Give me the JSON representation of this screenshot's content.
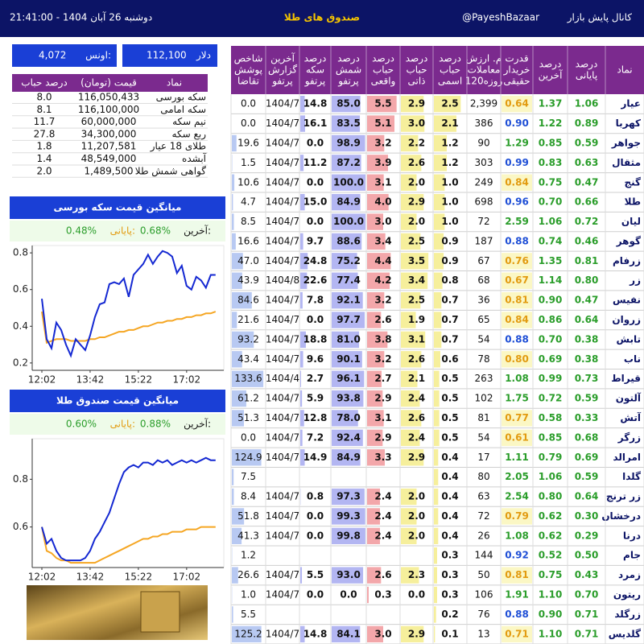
{
  "header": {
    "date": "دوشنبه 26 آبان 1404 - 21:41:00",
    "title": "صندوق های طلا",
    "channel": "کانال پایش بازار",
    "handle": "@PayeshBazaar"
  },
  "prices": {
    "dollar": {
      "label": "دلار",
      "value": "112,100"
    },
    "ounce": {
      "label": "اونس:",
      "value": "4,072"
    }
  },
  "coins": {
    "headers": [
      "نماد",
      "قیمت (تومان)",
      "درصد حباب"
    ],
    "rows": [
      [
        "سکه بورسی",
        "116,050,433",
        "8.0"
      ],
      [
        "سکه امامی",
        "116,100,000",
        "8.1"
      ],
      [
        "نیم سکه",
        "60,000,000",
        "11.7"
      ],
      [
        "ربع سکه",
        "34,300,000",
        "27.8"
      ],
      [
        "طلای 18 عیار",
        "11,207,581",
        "1.8"
      ],
      [
        "آبشده",
        "48,549,000",
        "1.4"
      ],
      [
        "گواهی شمش طلا",
        "1,489,500",
        "2.0"
      ]
    ]
  },
  "charts": [
    {
      "type": "line",
      "title": "میانگین قیمت سکه بورسی",
      "last_label": "آخرین:",
      "last": "0.68%",
      "close_label": "پایانی:",
      "close": "0.48%",
      "x": [
        722,
        732,
        742,
        752,
        762,
        772,
        782,
        792,
        802,
        812,
        822,
        832,
        842,
        852,
        862,
        872,
        882,
        892,
        902,
        912,
        922,
        932,
        942,
        952,
        962,
        972,
        982,
        992,
        1002,
        1012,
        1022,
        1032,
        1042,
        1052,
        1062,
        1072,
        1082
      ],
      "series": [
        {
          "color": "#1428d2",
          "values": [
            0.55,
            0.33,
            0.28,
            0.42,
            0.38,
            0.3,
            0.24,
            0.33,
            0.3,
            0.27,
            0.35,
            0.45,
            0.52,
            0.53,
            0.63,
            0.64,
            0.63,
            0.66,
            0.56,
            0.68,
            0.71,
            0.74,
            0.79,
            0.74,
            0.78,
            0.81,
            0.8,
            0.78,
            0.69,
            0.73,
            0.62,
            0.6,
            0.67,
            0.65,
            0.61,
            0.68,
            0.68
          ]
        },
        {
          "color": "#f5a623",
          "values": [
            0.48,
            0.31,
            0.32,
            0.33,
            0.33,
            0.33,
            0.32,
            0.32,
            0.32,
            0.32,
            0.33,
            0.33,
            0.34,
            0.34,
            0.35,
            0.36,
            0.37,
            0.37,
            0.38,
            0.38,
            0.39,
            0.4,
            0.4,
            0.41,
            0.42,
            0.42,
            0.43,
            0.43,
            0.44,
            0.44,
            0.45,
            0.45,
            0.46,
            0.46,
            0.47,
            0.47,
            0.48
          ]
        }
      ],
      "xlim": [
        702,
        1099
      ],
      "xticks": [
        {
          "value": 722,
          "label": "12:02"
        },
        {
          "value": 822,
          "label": "13:42"
        },
        {
          "value": 922,
          "label": "15:22"
        },
        {
          "value": 1022,
          "label": "17:02"
        }
      ],
      "ylim": [
        0.16,
        0.84
      ],
      "yticks": [
        0.2,
        0.4,
        0.6,
        0.8
      ]
    },
    {
      "type": "line",
      "title": "میانگین قیمت صندوق طلا",
      "last_label": "آخرین:",
      "last": "0.88%",
      "close_label": "پایانی:",
      "close": "0.60%",
      "x": [
        722,
        732,
        742,
        752,
        762,
        772,
        782,
        792,
        802,
        812,
        822,
        832,
        842,
        852,
        862,
        872,
        882,
        892,
        902,
        912,
        922,
        932,
        942,
        952,
        962,
        972,
        982,
        992,
        1002,
        1012,
        1022,
        1032,
        1042,
        1052,
        1062,
        1072,
        1082
      ],
      "series": [
        {
          "color": "#1428d2",
          "values": [
            0.6,
            0.53,
            0.55,
            0.5,
            0.47,
            0.46,
            0.46,
            0.46,
            0.46,
            0.47,
            0.5,
            0.55,
            0.58,
            0.62,
            0.66,
            0.72,
            0.78,
            0.83,
            0.85,
            0.86,
            0.85,
            0.87,
            0.87,
            0.86,
            0.88,
            0.87,
            0.88,
            0.86,
            0.87,
            0.88,
            0.87,
            0.88,
            0.87,
            0.88,
            0.89,
            0.88,
            0.88
          ]
        },
        {
          "color": "#f5a623",
          "values": [
            0.6,
            0.5,
            0.49,
            0.47,
            0.46,
            0.46,
            0.45,
            0.45,
            0.45,
            0.45,
            0.45,
            0.45,
            0.46,
            0.47,
            0.48,
            0.49,
            0.5,
            0.51,
            0.52,
            0.53,
            0.54,
            0.55,
            0.55,
            0.56,
            0.56,
            0.57,
            0.57,
            0.58,
            0.58,
            0.58,
            0.59,
            0.59,
            0.59,
            0.6,
            0.6,
            0.6,
            0.6
          ]
        }
      ],
      "xlim": [
        702,
        1099
      ],
      "xticks": [
        {
          "value": 722,
          "label": "12:02"
        },
        {
          "value": 822,
          "label": "13:42"
        },
        {
          "value": 922,
          "label": "15:22"
        },
        {
          "value": 1022,
          "label": "17:02"
        }
      ],
      "ylim": [
        0.43,
        0.97
      ],
      "yticks": [
        0.6,
        0.8
      ]
    }
  ],
  "table": {
    "headers": [
      [
        "نماد"
      ],
      [
        "درصد",
        "پایانی"
      ],
      [
        "درصد",
        "آخرین"
      ],
      [
        "قدرت",
        "خریدار",
        "حقیقی"
      ],
      [
        "م. ارزش",
        "معاملات",
        "120روزه"
      ],
      [
        "درصد",
        "حباب",
        "اسمی"
      ],
      [
        "درصد",
        "حباب",
        "ذاتی"
      ],
      [
        "درصد",
        "حباب",
        "واقعی"
      ],
      [
        "درصد",
        "شمش",
        "پرتفو"
      ],
      [
        "درصد",
        "سکه",
        "پرتفو"
      ],
      [
        "آخرین",
        "گزارش",
        "پرتفو"
      ],
      [
        "شاخص",
        "پوشش",
        "تقاضا"
      ]
    ],
    "rows": [
      [
        "عیار",
        "1.06",
        "1.37",
        "0.64",
        "2,399",
        "2.5",
        "2.9",
        "5.5",
        "85.0",
        "14.8",
        "1404/7",
        "0.0"
      ],
      [
        "کهربا",
        "0.89",
        "1.22",
        "0.90",
        "386",
        "2.1",
        "3.0",
        "5.1",
        "83.5",
        "16.1",
        "1404/7",
        "0.0"
      ],
      [
        "جواهر",
        "0.59",
        "0.85",
        "1.29",
        "90",
        "1.2",
        "2.2",
        "3.2",
        "98.9",
        "0.0",
        "1404/7",
        "19.6"
      ],
      [
        "مثقال",
        "0.63",
        "0.83",
        "0.99",
        "303",
        "1.2",
        "2.6",
        "3.9",
        "87.2",
        "11.2",
        "1404/7",
        "1.5"
      ],
      [
        "گنج",
        "0.47",
        "0.75",
        "0.84",
        "249",
        "1.0",
        "2.0",
        "3.1",
        "100.0",
        "0.0",
        "1404/7",
        "10.6"
      ],
      [
        "طلا",
        "0.66",
        "0.70",
        "0.96",
        "698",
        "1.0",
        "2.9",
        "4.0",
        "84.9",
        "15.0",
        "1404/7",
        "4.7"
      ],
      [
        "لیان",
        "0.72",
        "1.06",
        "2.59",
        "72",
        "1.0",
        "2.0",
        "3.0",
        "100.0",
        "0.0",
        "1404/7",
        "8.5"
      ],
      [
        "گوهر",
        "0.46",
        "0.74",
        "0.88",
        "187",
        "0.9",
        "2.5",
        "3.4",
        "88.6",
        "9.7",
        "1404/7",
        "16.6"
      ],
      [
        "زرفام",
        "0.81",
        "1.35",
        "0.76",
        "67",
        "0.9",
        "3.5",
        "4.4",
        "75.2",
        "24.8",
        "1404/7",
        "47.0"
      ],
      [
        "زر",
        "0.80",
        "1.14",
        "0.67",
        "68",
        "0.8",
        "3.4",
        "4.2",
        "77.4",
        "22.6",
        "1404/8",
        "43.9"
      ],
      [
        "نفیس",
        "0.47",
        "0.90",
        "0.81",
        "36",
        "0.7",
        "2.5",
        "3.2",
        "92.1",
        "7.8",
        "1404/7",
        "84.6"
      ],
      [
        "زروان",
        "0.64",
        "0.86",
        "0.84",
        "65",
        "0.7",
        "1.9",
        "2.6",
        "97.7",
        "0.0",
        "1404/7",
        "21.6"
      ],
      [
        "تابش",
        "0.38",
        "0.70",
        "0.88",
        "54",
        "0.7",
        "3.1",
        "3.8",
        "81.0",
        "18.8",
        "1404/7",
        "93.2"
      ],
      [
        "ناب",
        "0.38",
        "0.69",
        "0.80",
        "78",
        "0.6",
        "2.6",
        "3.2",
        "90.1",
        "9.6",
        "1404/7",
        "43.4"
      ],
      [
        "قیراط",
        "0.73",
        "0.99",
        "1.08",
        "263",
        "0.5",
        "2.1",
        "2.7",
        "96.1",
        "2.7",
        "1404/4",
        "133.6"
      ],
      [
        "آلتون",
        "0.59",
        "0.72",
        "1.75",
        "102",
        "0.5",
        "2.4",
        "2.9",
        "93.8",
        "5.9",
        "1404/7",
        "61.2"
      ],
      [
        "آتش",
        "0.33",
        "0.58",
        "0.77",
        "81",
        "0.5",
        "2.6",
        "3.1",
        "78.0",
        "12.8",
        "1404/7",
        "51.3"
      ],
      [
        "زرگر",
        "0.68",
        "0.85",
        "0.61",
        "54",
        "0.5",
        "2.4",
        "2.9",
        "92.4",
        "7.2",
        "1404/7",
        "0.0"
      ],
      [
        "امرالد",
        "0.69",
        "0.79",
        "1.11",
        "17",
        "0.4",
        "2.9",
        "3.3",
        "84.9",
        "14.9",
        "1404/7",
        "124.9"
      ],
      [
        "گلدا",
        "0.59",
        "1.06",
        "2.05",
        "80",
        "0.4",
        null,
        null,
        null,
        null,
        null,
        "7.5"
      ],
      [
        "زر ترنج",
        "0.64",
        "0.80",
        "2.54",
        "63",
        "0.4",
        "2.0",
        "2.4",
        "97.3",
        "0.8",
        "1404/7",
        "8.4"
      ],
      [
        "درخشان",
        "0.30",
        "0.62",
        "0.79",
        "72",
        "0.4",
        "2.0",
        "2.4",
        "99.3",
        "0.0",
        "1404/7",
        "51.8"
      ],
      [
        "درنا",
        "0.29",
        "0.62",
        "1.08",
        "26",
        "0.4",
        "2.0",
        "2.4",
        "99.8",
        "0.0",
        "1404/7",
        "41.3"
      ],
      [
        "جام",
        "0.50",
        "0.52",
        "0.92",
        "144",
        "0.3",
        null,
        null,
        null,
        null,
        null,
        "1.2"
      ],
      [
        "زمرد",
        "0.43",
        "0.75",
        "0.81",
        "50",
        "0.3",
        "2.3",
        "2.6",
        "93.0",
        "5.5",
        "1404/7",
        "26.6"
      ],
      [
        "ریتون",
        "0.70",
        "1.10",
        "1.91",
        "106",
        "0.3",
        "0.0",
        "0.3",
        "0.0",
        "0.0",
        "1404/7",
        "1.0"
      ],
      [
        "زرگلد",
        "0.71",
        "0.90",
        "0.88",
        "76",
        "0.2",
        null,
        null,
        null,
        null,
        null,
        "5.5"
      ],
      [
        "گلدیس",
        "0.71",
        "1.10",
        "0.71",
        "13",
        "0.1",
        "2.9",
        "3.0",
        "84.1",
        "14.8",
        "1404/7",
        "125.2"
      ]
    ]
  }
}
